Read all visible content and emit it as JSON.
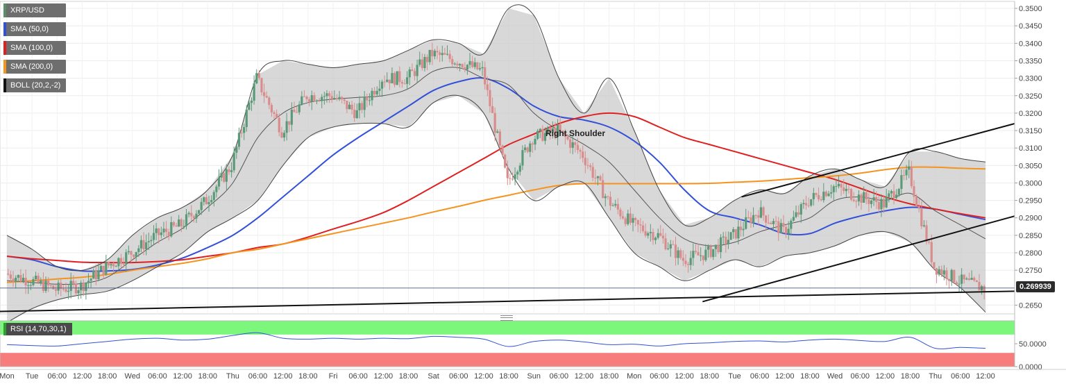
{
  "legend": {
    "items": [
      {
        "label": "XRP/USD",
        "color": "#5a8f6a"
      },
      {
        "label": "SMA (50,0)",
        "color": "#3350d8"
      },
      {
        "label": "SMA (100,0)",
        "color": "#e02020"
      },
      {
        "label": "SMA (200,0)",
        "color": "#f5931e"
      },
      {
        "label": "BOLL (20,2,-2)",
        "color": "#111111"
      }
    ],
    "rsi_label": "RSI (14,70,30,1)"
  },
  "last_price": "0.269939",
  "chart_data": [
    {
      "type": "candlestick",
      "title": "XRP/USD",
      "ylim": [
        0.2625,
        0.352
      ],
      "yticks": [
        "0.3500",
        "0.3450",
        "0.3400",
        "0.3350",
        "0.3300",
        "0.3250",
        "0.3200",
        "0.3150",
        "0.3100",
        "0.3050",
        "0.3000",
        "0.2950",
        "0.2900",
        "0.2850",
        "0.2800",
        "0.2750",
        "0.2650"
      ],
      "xticks": [
        "Mon",
        "Tue",
        "06:00",
        "12:00",
        "18:00",
        "Wed",
        "06:00",
        "12:00",
        "18:00",
        "Thu",
        "06:00",
        "12:00",
        "18:00",
        "Fri",
        "06:00",
        "12:00",
        "18:00",
        "Sat",
        "06:00",
        "12:00",
        "18:00",
        "Sun",
        "06:00",
        "12:00",
        "18:00",
        "Mon",
        "06:00",
        "12:00",
        "18:00",
        "Tue",
        "06:00",
        "12:00",
        "18:00",
        "Wed",
        "06:00",
        "12:00",
        "18:00",
        "Thu",
        "06:00",
        "12:00"
      ],
      "anchors": [
        0.274,
        0.272,
        0.2695,
        0.2705,
        0.276,
        0.28,
        0.285,
        0.288,
        0.295,
        0.305,
        0.33,
        0.315,
        0.325,
        0.325,
        0.32,
        0.33,
        0.33,
        0.337,
        0.335,
        0.332,
        0.3,
        0.313,
        0.315,
        0.308,
        0.295,
        0.288,
        0.285,
        0.278,
        0.28,
        0.285,
        0.292,
        0.286,
        0.295,
        0.299,
        0.296,
        0.294,
        0.303,
        0.276,
        0.272,
        0.2699
      ],
      "series": [
        {
          "name": "SMA (50,0)",
          "color": "#3350d8",
          "values": [
            0.279,
            0.278,
            0.276,
            0.2748,
            0.2748,
            0.2752,
            0.2765,
            0.2785,
            0.2815,
            0.285,
            0.29,
            0.296,
            0.302,
            0.308,
            0.313,
            0.3175,
            0.322,
            0.3265,
            0.329,
            0.33,
            0.327,
            0.322,
            0.319,
            0.318,
            0.316,
            0.312,
            0.306,
            0.298,
            0.292,
            0.29,
            0.288,
            0.2855,
            0.2855,
            0.2885,
            0.2905,
            0.292,
            0.293,
            0.2925,
            0.291,
            0.2895
          ]
        },
        {
          "name": "SMA (100,0)",
          "color": "#e02020",
          "values": [
            0.279,
            0.2783,
            0.2778,
            0.2773,
            0.2772,
            0.2772,
            0.2775,
            0.278,
            0.279,
            0.28,
            0.2815,
            0.2825,
            0.2845,
            0.2868,
            0.289,
            0.2915,
            0.295,
            0.299,
            0.303,
            0.307,
            0.311,
            0.314,
            0.317,
            0.319,
            0.32,
            0.319,
            0.316,
            0.313,
            0.311,
            0.309,
            0.307,
            0.305,
            0.303,
            0.301,
            0.2985,
            0.296,
            0.294,
            0.2925,
            0.2912,
            0.29
          ]
        },
        {
          "name": "SMA (200,0)",
          "color": "#f5931e",
          "values": [
            0.2715,
            0.272,
            0.2725,
            0.273,
            0.2738,
            0.275,
            0.276,
            0.277,
            0.2783,
            0.28,
            0.281,
            0.2825,
            0.284,
            0.2855,
            0.287,
            0.2885,
            0.29,
            0.2917,
            0.2933,
            0.295,
            0.2965,
            0.298,
            0.2993,
            0.2998,
            0.2998,
            0.2998,
            0.2998,
            0.2998,
            0.2999,
            0.3002,
            0.3005,
            0.301,
            0.3015,
            0.302,
            0.3028,
            0.3038,
            0.3045,
            0.3045,
            0.3042,
            0.304
          ]
        },
        {
          "name": "BOLL upper",
          "color": "#444444",
          "values": [
            0.285,
            0.281,
            0.276,
            0.275,
            0.278,
            0.285,
            0.29,
            0.293,
            0.298,
            0.308,
            0.331,
            0.335,
            0.334,
            0.333,
            0.334,
            0.335,
            0.338,
            0.341,
            0.34,
            0.337,
            0.35,
            0.348,
            0.33,
            0.32,
            0.33,
            0.315,
            0.298,
            0.288,
            0.29,
            0.295,
            0.298,
            0.297,
            0.302,
            0.304,
            0.301,
            0.299,
            0.309,
            0.309,
            0.307,
            0.306
          ]
        },
        {
          "name": "BOLL middle",
          "color": "#555555",
          "values": [
            0.272,
            0.2715,
            0.271,
            0.2712,
            0.273,
            0.278,
            0.283,
            0.287,
            0.293,
            0.3,
            0.313,
            0.32,
            0.323,
            0.324,
            0.3245,
            0.325,
            0.327,
            0.332,
            0.333,
            0.33,
            0.328,
            0.32,
            0.315,
            0.311,
            0.306,
            0.298,
            0.29,
            0.284,
            0.282,
            0.283,
            0.286,
            0.288,
            0.29,
            0.295,
            0.296,
            0.295,
            0.297,
            0.292,
            0.288,
            0.284
          ]
        },
        {
          "name": "BOLL lower",
          "color": "#444444",
          "values": [
            0.26,
            0.264,
            0.2665,
            0.268,
            0.269,
            0.272,
            0.276,
            0.28,
            0.286,
            0.29,
            0.295,
            0.305,
            0.313,
            0.316,
            0.317,
            0.317,
            0.316,
            0.323,
            0.325,
            0.32,
            0.304,
            0.295,
            0.299,
            0.3,
            0.29,
            0.28,
            0.276,
            0.272,
            0.275,
            0.278,
            0.276,
            0.279,
            0.28,
            0.282,
            0.285,
            0.286,
            0.283,
            0.275,
            0.27,
            0.263
          ]
        }
      ],
      "trendlines": [
        {
          "from": [
            "Mon",
            0.2632
          ],
          "to": [
            "12:00",
            0.269
          ]
        },
        {
          "from": [
            "18:00",
            0.266
          ],
          "to": [
            "12:00",
            0.2905
          ]
        },
        {
          "from": [
            "Tue",
            0.296
          ],
          "to": [
            "12:00",
            0.317
          ]
        }
      ],
      "annotations": [
        "Right Shoulder"
      ],
      "current_value": 0.2699
    },
    {
      "type": "line",
      "title": "RSI (14,70,30,1)",
      "ylim": [
        0,
        100
      ],
      "yticks": [
        "50.0000",
        "0.0000"
      ],
      "overbought": 70,
      "oversold": 30,
      "series": [
        {
          "name": "RSI",
          "color": "#3350d8",
          "values": [
            48,
            46,
            45,
            50,
            55,
            60,
            62,
            58,
            60,
            68,
            74,
            62,
            60,
            62,
            60,
            62,
            61,
            66,
            64,
            60,
            44,
            55,
            58,
            54,
            48,
            49,
            45,
            50,
            52,
            55,
            56,
            54,
            58,
            60,
            57,
            55,
            64,
            40,
            42,
            40
          ]
        }
      ]
    }
  ]
}
